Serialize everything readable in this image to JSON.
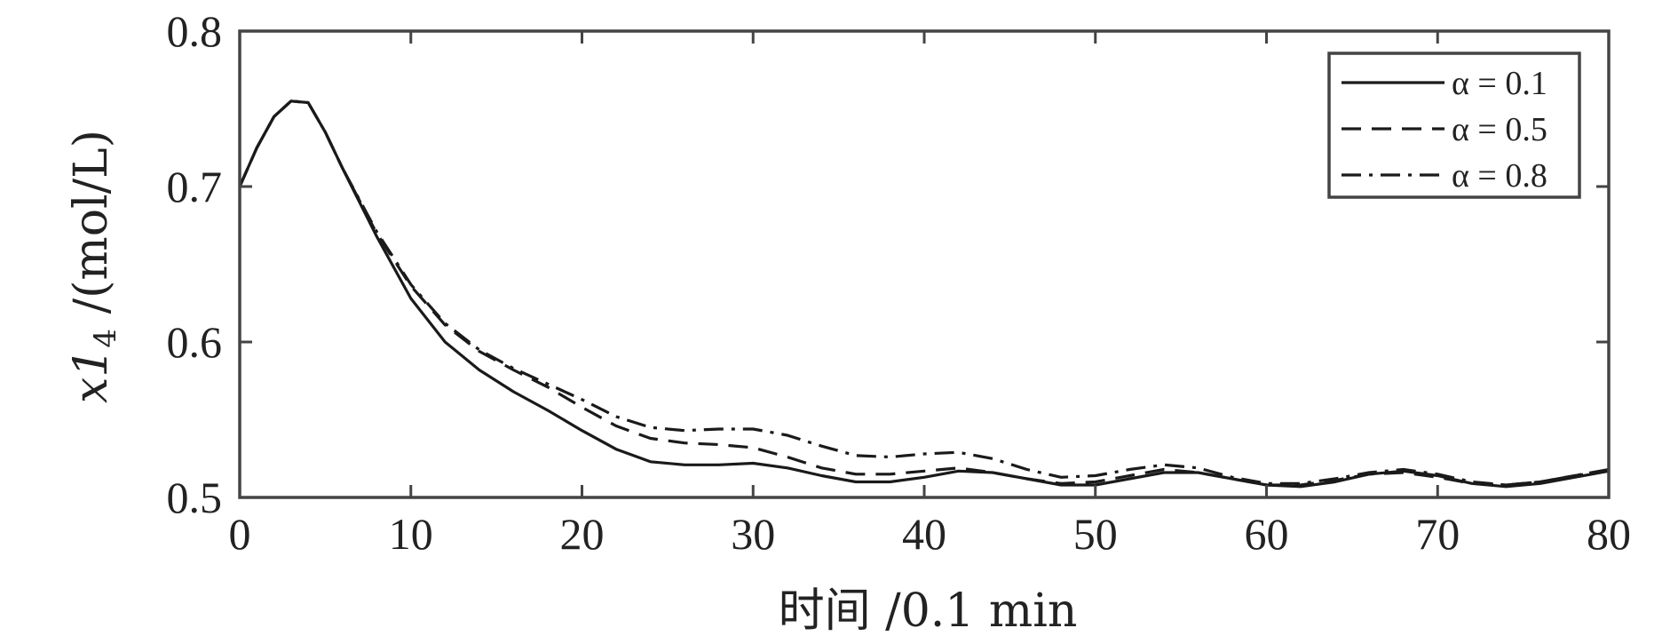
{
  "chart_data": {
    "type": "line",
    "title": "",
    "xlabel": "时间 /0.1 min",
    "ylabel": "x1₄ /(mol/L)",
    "ylabel_parts": {
      "var": "x1",
      "sub": "4",
      "unit": " /(mol/L)"
    },
    "xlim": [
      0,
      80
    ],
    "ylim": [
      0.5,
      0.8
    ],
    "xticks": [
      "0",
      "10",
      "20",
      "30",
      "40",
      "50",
      "60",
      "70",
      "80"
    ],
    "yticks": [
      "0.5",
      "0.6",
      "0.7",
      "0.8"
    ],
    "grid": false,
    "legend_position": "top-right",
    "series": [
      {
        "name": "α = 0.1",
        "dash": "solid",
        "x": [
          0,
          1,
          2,
          3,
          4,
          5,
          6,
          8,
          10,
          12,
          14,
          16,
          18,
          20,
          22,
          24,
          26,
          28,
          30,
          32,
          34,
          36,
          38,
          40,
          42,
          44,
          46,
          48,
          50,
          52,
          54,
          56,
          58,
          60,
          62,
          64,
          66,
          68,
          70,
          72,
          74,
          76,
          78,
          80
        ],
        "y": [
          0.7,
          0.725,
          0.745,
          0.755,
          0.754,
          0.735,
          0.712,
          0.668,
          0.628,
          0.6,
          0.582,
          0.568,
          0.556,
          0.543,
          0.531,
          0.523,
          0.521,
          0.521,
          0.522,
          0.519,
          0.514,
          0.51,
          0.51,
          0.513,
          0.517,
          0.516,
          0.512,
          0.508,
          0.508,
          0.512,
          0.516,
          0.516,
          0.512,
          0.508,
          0.507,
          0.51,
          0.515,
          0.517,
          0.514,
          0.509,
          0.507,
          0.509,
          0.513,
          0.517
        ]
      },
      {
        "name": "α = 0.5",
        "dash": "dashed",
        "x": [
          0,
          1,
          2,
          3,
          4,
          5,
          6,
          8,
          10,
          12,
          14,
          16,
          18,
          20,
          22,
          24,
          26,
          28,
          30,
          32,
          34,
          36,
          38,
          40,
          42,
          44,
          46,
          48,
          50,
          52,
          54,
          56,
          58,
          60,
          62,
          64,
          66,
          68,
          70,
          72,
          74,
          76,
          78,
          80
        ],
        "y": [
          0.7,
          0.725,
          0.745,
          0.755,
          0.754,
          0.735,
          0.712,
          0.67,
          0.636,
          0.611,
          0.594,
          0.582,
          0.571,
          0.558,
          0.546,
          0.538,
          0.535,
          0.534,
          0.532,
          0.526,
          0.519,
          0.515,
          0.515,
          0.517,
          0.519,
          0.516,
          0.512,
          0.509,
          0.51,
          0.514,
          0.518,
          0.516,
          0.512,
          0.508,
          0.508,
          0.511,
          0.515,
          0.516,
          0.513,
          0.509,
          0.508,
          0.51,
          0.514,
          0.517
        ]
      },
      {
        "name": "α = 0.8",
        "dash": "dashdot",
        "x": [
          0,
          1,
          2,
          3,
          4,
          5,
          6,
          8,
          10,
          12,
          14,
          16,
          18,
          20,
          22,
          24,
          26,
          28,
          30,
          32,
          34,
          36,
          38,
          40,
          42,
          44,
          46,
          48,
          50,
          52,
          54,
          56,
          58,
          60,
          62,
          64,
          66,
          68,
          70,
          72,
          74,
          76,
          78,
          80
        ],
        "y": [
          0.7,
          0.725,
          0.745,
          0.755,
          0.754,
          0.735,
          0.712,
          0.671,
          0.637,
          0.612,
          0.595,
          0.583,
          0.573,
          0.563,
          0.552,
          0.545,
          0.543,
          0.544,
          0.544,
          0.54,
          0.533,
          0.527,
          0.526,
          0.528,
          0.529,
          0.525,
          0.518,
          0.513,
          0.514,
          0.518,
          0.521,
          0.519,
          0.513,
          0.509,
          0.509,
          0.512,
          0.516,
          0.518,
          0.515,
          0.51,
          0.508,
          0.51,
          0.514,
          0.518
        ]
      }
    ]
  }
}
